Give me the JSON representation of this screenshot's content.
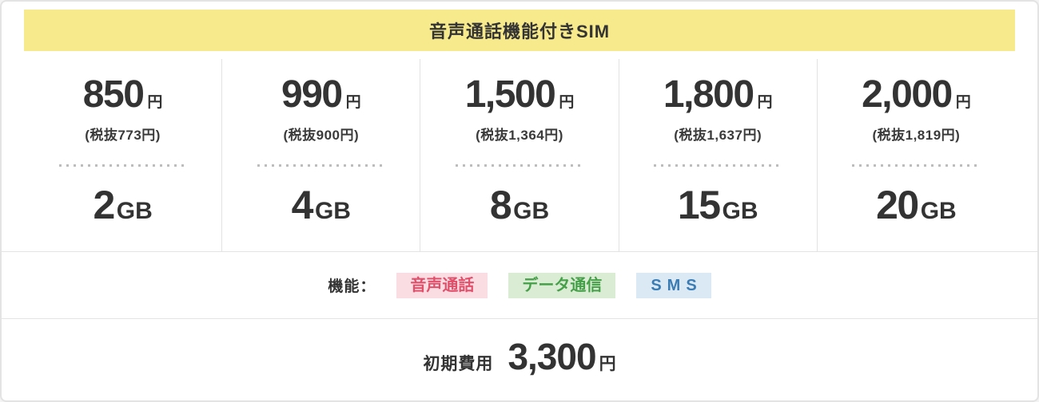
{
  "header": {
    "title": "音声通話機能付きSIM"
  },
  "plans": [
    {
      "price": "850",
      "unit": "円",
      "tax_note": "(税抜773円)",
      "data_amount": "2",
      "data_unit": "GB"
    },
    {
      "price": "990",
      "unit": "円",
      "tax_note": "(税抜900円)",
      "data_amount": "4",
      "data_unit": "GB"
    },
    {
      "price": "1,500",
      "unit": "円",
      "tax_note": "(税抜1,364円)",
      "data_amount": "8",
      "data_unit": "GB"
    },
    {
      "price": "1,800",
      "unit": "円",
      "tax_note": "(税抜1,637円)",
      "data_amount": "15",
      "data_unit": "GB"
    },
    {
      "price": "2,000",
      "unit": "円",
      "tax_note": "(税抜1,819円)",
      "data_amount": "20",
      "data_unit": "GB"
    }
  ],
  "features": {
    "label": "機能：",
    "badges": [
      {
        "label": "音声通話",
        "text_color": "#e0506b",
        "bg_color": "#fadde3"
      },
      {
        "label": "データ通信",
        "text_color": "#46a049",
        "bg_color": "#daecd4"
      },
      {
        "label": "SMS",
        "text_color": "#3b7cb3",
        "bg_color": "#dbe9f4"
      }
    ]
  },
  "initial_cost": {
    "label": "初期費用",
    "amount": "3,300",
    "unit": "円"
  },
  "colors": {
    "header_bg": "#f7ea8c",
    "text": "#333333",
    "divider": "#e3e3e3"
  }
}
